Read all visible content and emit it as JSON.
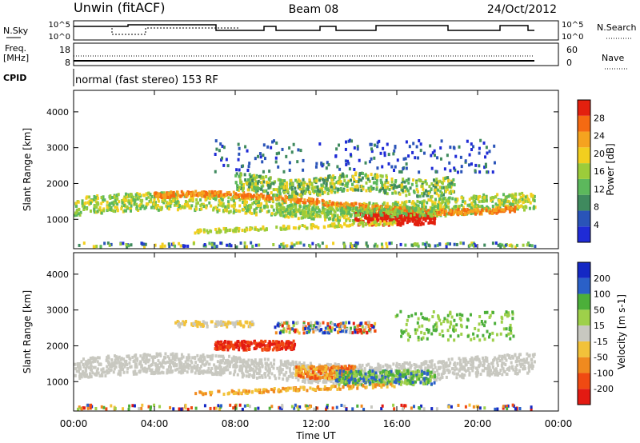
{
  "header": {
    "site": "Unwin (fitACF)",
    "beam": "Beam 08",
    "date": "24/Oct/2012"
  },
  "nsky_panel": {
    "left_label": "N.Sky",
    "right_label": "N.Search",
    "left_ticks": [
      "10^5",
      "10^0"
    ],
    "right_ticks": [
      "10^5",
      "10^0"
    ]
  },
  "freq_panel": {
    "left_label_1": "Freq.",
    "left_label_2": "[MHz]",
    "right_label": "Nave",
    "left_ticks": [
      "18",
      "8"
    ],
    "right_ticks": [
      "60",
      "0"
    ]
  },
  "cpid": {
    "label": "CPID",
    "value": "normal (fast stereo) 153 RF"
  },
  "colors": {
    "power": [
      "#1f2bd6",
      "#2a54b8",
      "#3f8a5e",
      "#5cb85c",
      "#9ccc3a",
      "#f2cf1f",
      "#f5a31f",
      "#f56a12",
      "#e3200e"
    ],
    "velocity": [
      "#e31a12",
      "#f04a12",
      "#f08a1f",
      "#f2c23a",
      "#c8c8c0",
      "#9ed04a",
      "#4caf3a",
      "#2a60c8",
      "#1428c4"
    ],
    "ground_scatter": "#c8c8c0"
  },
  "chart_data": [
    {
      "type": "heatmap",
      "name": "power",
      "title": "",
      "xlabel": "",
      "ylabel": "Slant Range [km]",
      "xlim": [
        "00:00",
        "00:00"
      ],
      "ylim": [
        180,
        4600
      ],
      "y_ticks": [
        "1000",
        "2000",
        "3000",
        "4000"
      ],
      "colorbar": {
        "label": "Power [dB]",
        "ticks": [
          "4",
          "8",
          "12",
          "16",
          "20",
          "24",
          "28"
        ],
        "range": [
          0,
          32
        ]
      }
    },
    {
      "type": "heatmap",
      "name": "velocity",
      "title": "",
      "xlabel": "Time UT",
      "ylabel": "Slant Range [km]",
      "x_ticks": [
        "00:00",
        "04:00",
        "08:00",
        "12:00",
        "16:00",
        "20:00",
        "00:00"
      ],
      "xlim": [
        "00:00",
        "00:00"
      ],
      "ylim": [
        180,
        4600
      ],
      "y_ticks": [
        "1000",
        "2000",
        "3000",
        "4000"
      ],
      "colorbar": {
        "label": "Velocity [m s-1]",
        "ticks": [
          "200",
          "100",
          "50",
          "15",
          "-15",
          "-50",
          "-100",
          "-200"
        ],
        "range": [
          -250,
          250
        ]
      }
    }
  ]
}
